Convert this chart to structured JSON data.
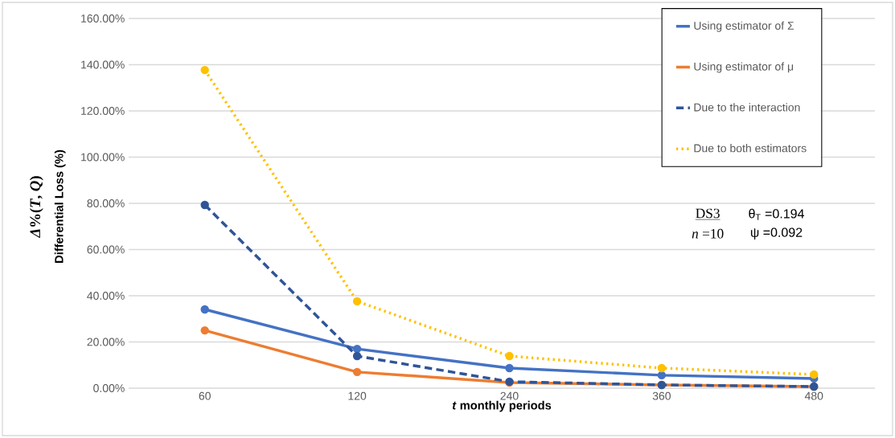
{
  "chart_data": {
    "type": "line",
    "xlabel": "*t* monthly periods",
    "ylabel": "Differential Loss (%)",
    "categories": [
      "60",
      "120",
      "240",
      "360",
      "480"
    ],
    "series": [
      {
        "name": "Using estimator of Σ",
        "color": "#4472c4",
        "line_style": "solid",
        "values": [
          34.1,
          17.0,
          8.7,
          5.6,
          4.2
        ]
      },
      {
        "name": "Using estimator of μ",
        "color": "#ed7d31",
        "line_style": "solid",
        "values": [
          25.0,
          7.0,
          2.4,
          1.4,
          0.7
        ]
      },
      {
        "name": "Due to the interaction",
        "color": "#2f5597",
        "line_style": "dashed",
        "values": [
          79.3,
          13.9,
          2.8,
          1.4,
          0.7
        ]
      },
      {
        "name": "Due to both estimators",
        "color": "#ffc000",
        "line_style": "dotted",
        "values": [
          137.7,
          37.6,
          13.9,
          8.7,
          5.9
        ]
      }
    ],
    "ylim": [
      0,
      160
    ],
    "yticks": [
      {
        "value": 0,
        "label": "0.00%"
      },
      {
        "value": 20,
        "label": "20.00%"
      },
      {
        "value": 40,
        "label": "40.00%"
      },
      {
        "value": 60,
        "label": "60.00%"
      },
      {
        "value": 80,
        "label": "80.00%"
      },
      {
        "value": 100,
        "label": "100.00%"
      },
      {
        "value": 120,
        "label": "120.00%"
      },
      {
        "value": 140,
        "label": "140.00%"
      },
      {
        "value": 160,
        "label": "160.00%"
      }
    ],
    "annotations": [
      "*Δ*%(*T*, *Q*)",
      "DS3",
      "θ$_{T}$ =0.194",
      "*n* =10",
      "ψ =0.092"
    ],
    "grid": "y",
    "legend": "top right",
    "marker": "circle"
  }
}
